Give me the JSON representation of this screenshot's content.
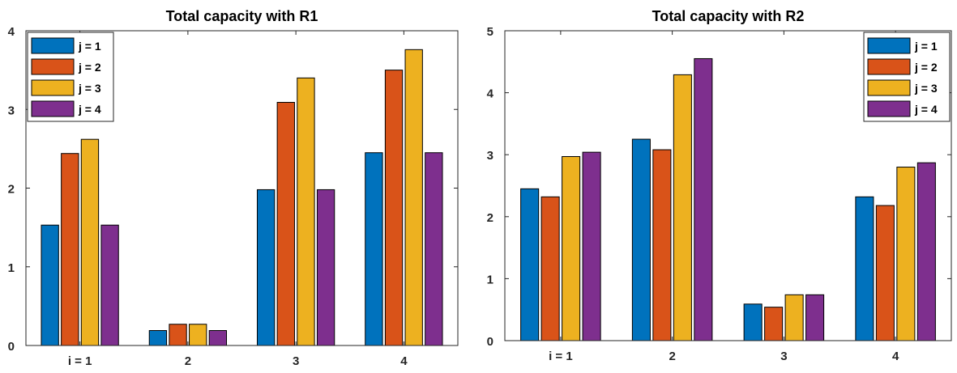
{
  "chart_data": [
    {
      "type": "bar",
      "title": "Total capacity with R1",
      "categories": [
        "i = 1",
        "2",
        "3",
        "4"
      ],
      "xlabel": "",
      "ylabel": "",
      "ylim": [
        0,
        4
      ],
      "yticks": [
        "0",
        "1",
        "2",
        "3",
        "4"
      ],
      "grid": false,
      "legend_placement": "top-left",
      "series": [
        {
          "name": "j = 1",
          "color": "#0072BD",
          "values": [
            1.53,
            0.19,
            1.98,
            2.45
          ]
        },
        {
          "name": "j = 2",
          "color": "#D95319",
          "values": [
            2.44,
            0.27,
            3.09,
            3.5
          ]
        },
        {
          "name": "j = 3",
          "color": "#EDB120",
          "values": [
            2.62,
            0.27,
            3.4,
            3.76
          ]
        },
        {
          "name": "j = 4",
          "color": "#7E2F8E",
          "values": [
            1.53,
            0.19,
            1.98,
            2.45
          ]
        }
      ]
    },
    {
      "type": "bar",
      "title": "Total capacity with R2",
      "categories": [
        "i = 1",
        "2",
        "3",
        "4"
      ],
      "xlabel": "",
      "ylabel": "",
      "ylim": [
        0,
        5
      ],
      "yticks": [
        "0",
        "1",
        "2",
        "3",
        "4",
        "5"
      ],
      "grid": false,
      "legend_placement": "top-right",
      "series": [
        {
          "name": "j = 1",
          "color": "#0072BD",
          "values": [
            2.45,
            3.25,
            0.59,
            2.32
          ]
        },
        {
          "name": "j = 2",
          "color": "#D95319",
          "values": [
            2.32,
            3.08,
            0.54,
            2.18
          ]
        },
        {
          "name": "j = 3",
          "color": "#EDB120",
          "values": [
            2.97,
            4.29,
            0.74,
            2.8
          ]
        },
        {
          "name": "j = 4",
          "color": "#7E2F8E",
          "values": [
            3.04,
            4.55,
            0.74,
            2.87
          ]
        }
      ]
    }
  ]
}
